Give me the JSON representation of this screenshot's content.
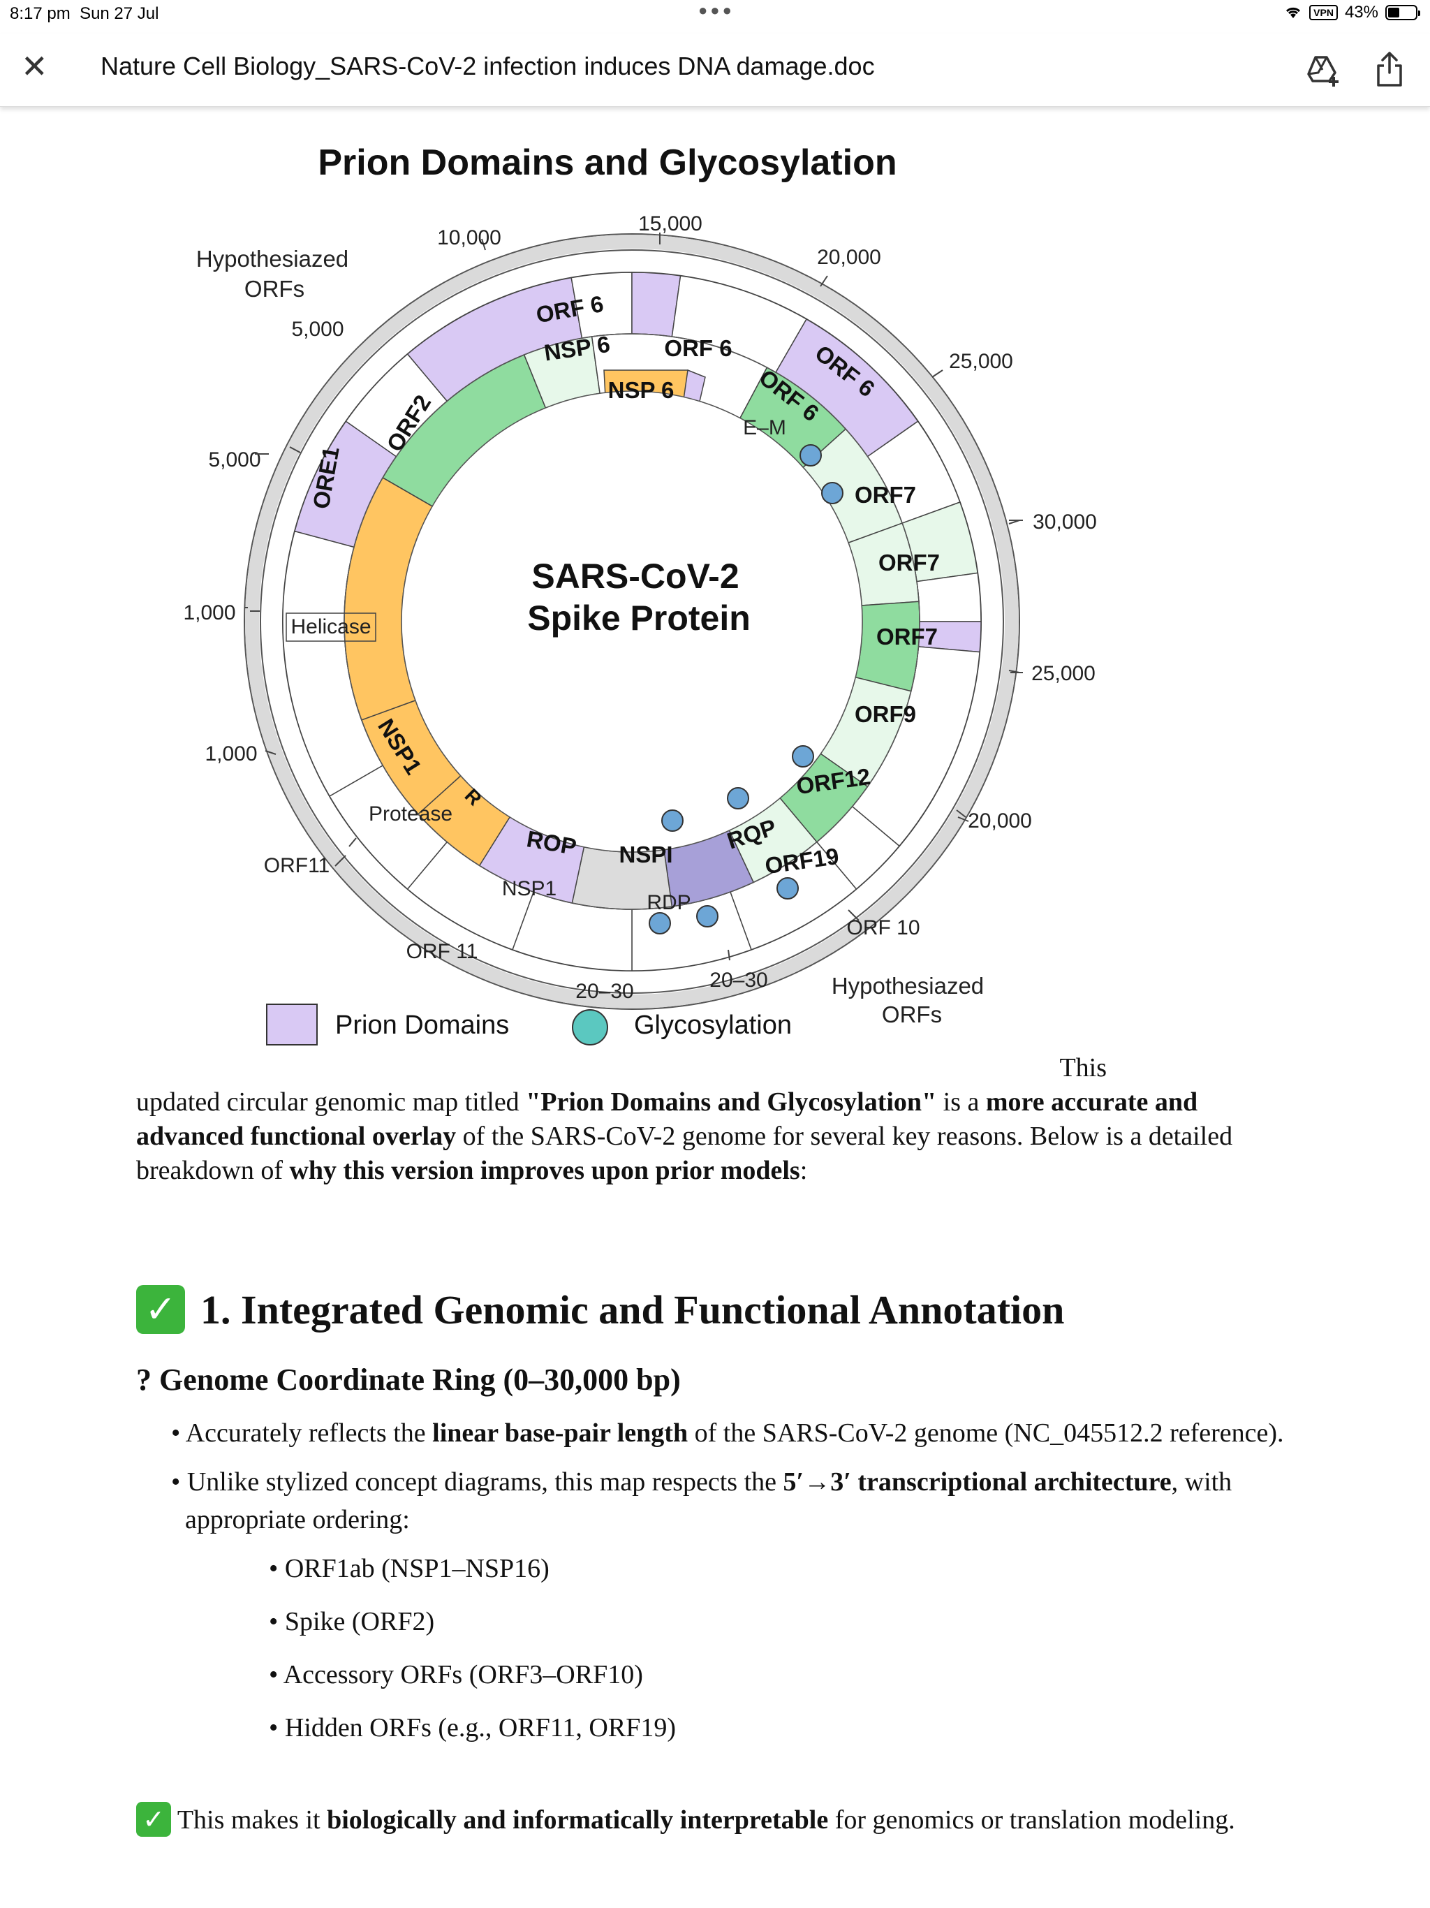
{
  "status_bar": {
    "time": "8:17 pm",
    "date": "Sun 27 Jul",
    "vpn": "VPN",
    "battery": "43%",
    "battery_level": 0.43
  },
  "toolbar": {
    "title": "Nature Cell Biology_SARS-CoV-2 infection induces DNA damage.doc",
    "icons": [
      "close-icon",
      "add-to-drive-icon",
      "share-icon"
    ]
  },
  "figure": {
    "title": "Prion Domains and Glycosylation",
    "center_line1": "SARS-CoV-2",
    "center_line2": "Spike Protein",
    "outer_labels": [
      "15,000",
      "10,000",
      "20,000",
      "25,000",
      "30,000",
      "25,000",
      "20,000",
      "5,000",
      "5,000",
      "1,000",
      "1,000",
      "ORF11",
      "ORF 11",
      "20–30",
      "20–30",
      "ORF 10"
    ],
    "hyp_top": [
      "Hypothesiazed",
      "ORFs"
    ],
    "hyp_bottom": [
      "Hypothesiazed",
      "ORFs"
    ],
    "ring_labels": {
      "orf6_a": "ORF 6",
      "nsp6_a": "NSP 6",
      "orf6_b": "ORF 6",
      "nsp6_b": "NSP 6",
      "orf6_c": "ORF 6",
      "orf6_d": "ORF 6",
      "em": "E–M",
      "orf7_a": "ORF7",
      "orf7_b": "ORF7",
      "orf7_c": "ORF7",
      "orf9": "ORF9",
      "orf12": "ORF12",
      "orf19": "ORF19",
      "rop_a": "ROP",
      "nspi": "NSPI",
      "rop_b": "RQP",
      "rdp": "RDP",
      "nsp1": "NSP1",
      "protease": "Protease",
      "r": "R",
      "nsp1_b": "NSP1",
      "helicase": "Helicase",
      "orf2": "ORF2",
      "ore1": "ORE1"
    },
    "legend": {
      "prion": "Prion Domains",
      "glyco": "Glycosylation"
    },
    "colors": {
      "prion": "#d9c9f4",
      "orange": "#ffc561",
      "green": "#8fdc9f",
      "lightgreen": "#e7f8ea",
      "gray": "#dcdcdc",
      "purple": "#a7a0d8",
      "glyco": "#6da6d6",
      "legend_glyco": "#5bc8c0"
    }
  },
  "document": {
    "this_word": "This",
    "para_segments": [
      {
        "t": "updated circular genomic map titled ",
        "b": false
      },
      {
        "t": "\"Prion Domains and Glycosylation\"",
        "b": true
      },
      {
        "t": " is a ",
        "b": false
      },
      {
        "t": "more accurate and advanced functional overlay",
        "b": true
      },
      {
        "t": " of the SARS-CoV-2 genome for several key reasons. Below is a detailed breakdown of ",
        "b": false
      },
      {
        "t": "why this version improves upon prior models",
        "b": true
      },
      {
        "t": ":",
        "b": false
      }
    ],
    "heading1": "1. Integrated Genomic and Functional Annotation",
    "heading2": "? Genome Coordinate Ring (0–30,000 bp)",
    "bullet1": {
      "a": "Accurately reflects the ",
      "b": "linear base-pair length",
      "c": " of the SARS-CoV-2 genome (NC_045512.2 reference)."
    },
    "bullet2": {
      "a": "Unlike stylized concept diagrams, this map respects the ",
      "b": "5′→3′ transcriptional architecture",
      "c": ", with appropriate ordering:"
    },
    "sub_bullets": [
      "ORF1ab (NSP1–NSP16)",
      "Spike (ORF2)",
      "Accessory ORFs (ORF3–ORF10)",
      "Hidden ORFs (e.g., ORF11, ORF19)"
    ],
    "note": {
      "a": "This makes it ",
      "b": "biologically and informatically interpretable",
      "c": " for genomics or translation modeling."
    }
  }
}
